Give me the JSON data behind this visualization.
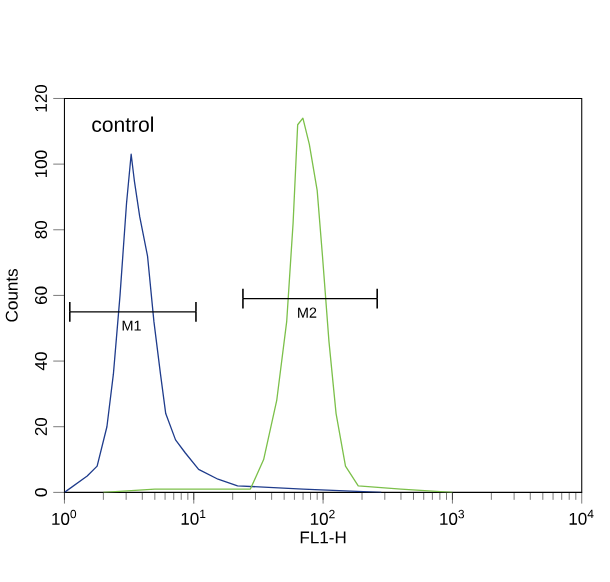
{
  "chart_data": {
    "type": "line",
    "xlabel": "FL1-H",
    "ylabel": "Counts",
    "log": "x",
    "xlim": [
      1,
      10000
    ],
    "ylim": [
      0,
      120
    ],
    "xticks": [
      {
        "value": 1,
        "label": "10$^{0}$"
      },
      {
        "value": 10,
        "label": "10$^{1}$"
      },
      {
        "value": 100,
        "label": "10$^{2}$"
      },
      {
        "value": 1000,
        "label": "10$^{3}$"
      },
      {
        "value": 10000,
        "label": "10$^{4}$"
      }
    ],
    "yticks": [
      0,
      20,
      40,
      60,
      80,
      100,
      120
    ],
    "grid": false,
    "annotations": [
      "control",
      {
        "text": "M1",
        "x": 3.3,
        "y": 55
      },
      {
        "text": "M2",
        "x": 75,
        "y": 59
      }
    ],
    "series": [
      {
        "color": "#1f3c8c",
        "x": [
          1,
          1.5,
          1.79,
          2.13,
          2.39,
          2.69,
          3.02,
          3.28,
          3.47,
          3.82,
          4.39,
          4.92,
          5.53,
          6.07,
          7.23,
          8.61,
          10.9,
          15.4,
          21.8,
          70,
          282
        ],
        "values": [
          0,
          5,
          8,
          20,
          36,
          60,
          88,
          103,
          95,
          84,
          72,
          52,
          36,
          24,
          16,
          12,
          7,
          4,
          2,
          1,
          0
        ]
      },
      {
        "color": "#7cc04a",
        "x": [
          2,
          5,
          10,
          20,
          27.4,
          34.7,
          43.8,
          52.3,
          58.6,
          63.6,
          69.8,
          78.3,
          90,
          98.9,
          111,
          126,
          149,
          187,
          400,
          1000
        ],
        "values": [
          0,
          1,
          1,
          1,
          1,
          10,
          28,
          52,
          82,
          112,
          114,
          106,
          92,
          72,
          46,
          24,
          8,
          2,
          1,
          0
        ]
      },
      {
        "color": "#000000",
        "x": [
          1.1,
          10.4
        ],
        "values": [
          55,
          55
        ],
        "errors": [
          3,
          3
        ]
      },
      {
        "color": "#000000",
        "x": [
          24,
          262
        ],
        "values": [
          59,
          59
        ],
        "errors": [
          3,
          3
        ]
      }
    ]
  }
}
